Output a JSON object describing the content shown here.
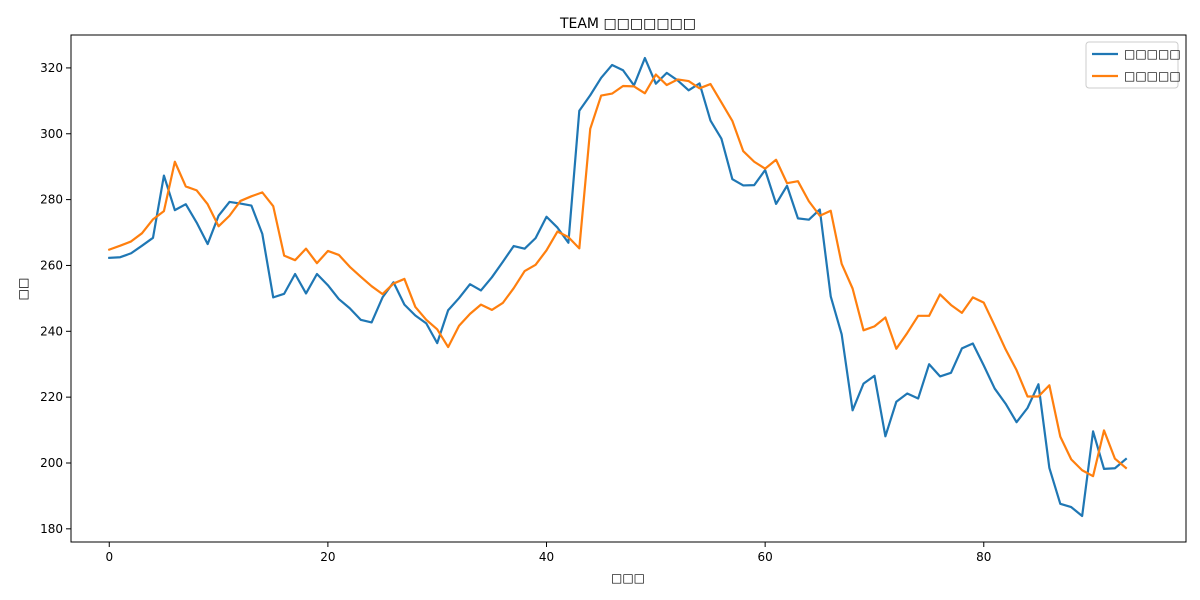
{
  "chart_data": {
    "type": "line",
    "title": "TEAM □□□□□□□",
    "xlabel": "□□□",
    "ylabel": "□□",
    "xlim": [
      -3.5,
      98.5
    ],
    "ylim": [
      176,
      330
    ],
    "xticks": [
      0,
      20,
      40,
      60,
      80
    ],
    "yticks": [
      180,
      200,
      220,
      240,
      260,
      280,
      300,
      320
    ],
    "grid": false,
    "legend_position": "top-right",
    "series": [
      {
        "name": "□□□□□",
        "color": "#1f77b4",
        "values": [
          262.3,
          262.5,
          263.7,
          266.0,
          268.4,
          287.3,
          276.8,
          278.6,
          273.0,
          266.5,
          275.1,
          279.3,
          278.8,
          278.2,
          269.6,
          250.3,
          251.4,
          257.4,
          251.5,
          257.4,
          254.0,
          249.8,
          247.0,
          243.5,
          242.7,
          250.3,
          254.9,
          248.1,
          244.8,
          242.4,
          236.4,
          246.4,
          250.1,
          254.3,
          252.4,
          256.4,
          261.1,
          265.9,
          265.1,
          268.3,
          274.8,
          271.5,
          266.9,
          307.0,
          311.7,
          317.0,
          320.9,
          319.3,
          314.7,
          323.0,
          315.2,
          318.5,
          316.2,
          313.2,
          315.3,
          304.0,
          298.5,
          286.2,
          284.3,
          284.4,
          289.0,
          278.7,
          284.2,
          274.3,
          273.9,
          277.0,
          250.6,
          239.1,
          216.0,
          224.1,
          226.5,
          208.1,
          218.6,
          221.1,
          219.6,
          230.0,
          226.3,
          227.4,
          234.8,
          236.3,
          229.6,
          222.6,
          218.0,
          212.4,
          216.7,
          223.9,
          198.5,
          187.6,
          186.6,
          183.9,
          209.6,
          198.2,
          198.4,
          201.2
        ]
      },
      {
        "name": "□□□□□",
        "color": "#ff7f0e",
        "values": [
          264.8,
          266.0,
          267.3,
          269.8,
          274.0,
          276.5,
          291.5,
          284.0,
          282.8,
          278.6,
          271.9,
          275.1,
          279.6,
          281.0,
          282.2,
          278.0,
          263.0,
          261.6,
          265.1,
          260.7,
          264.4,
          263.2,
          259.6,
          256.6,
          253.7,
          251.3,
          254.5,
          255.9,
          247.4,
          243.5,
          240.6,
          235.2,
          241.7,
          245.3,
          248.1,
          246.5,
          248.6,
          253.1,
          258.3,
          260.2,
          264.6,
          270.3,
          268.6,
          265.2,
          301.5,
          311.6,
          312.2,
          314.5,
          314.4,
          312.3,
          318.0,
          314.8,
          316.5,
          316.0,
          313.8,
          315.1,
          309.5,
          303.9,
          294.7,
          291.5,
          289.4,
          292.1,
          285.0,
          285.6,
          279.5,
          275.1,
          276.6,
          260.5,
          253.0,
          240.3,
          241.5,
          244.2,
          234.7,
          239.5,
          244.7,
          244.7,
          251.2,
          248.0,
          245.6,
          250.3,
          248.7,
          241.7,
          234.5,
          228.2,
          220.2,
          220.2,
          223.6,
          208.0,
          201.1,
          197.8,
          196.0,
          209.9,
          201.3,
          198.5
        ]
      }
    ]
  }
}
